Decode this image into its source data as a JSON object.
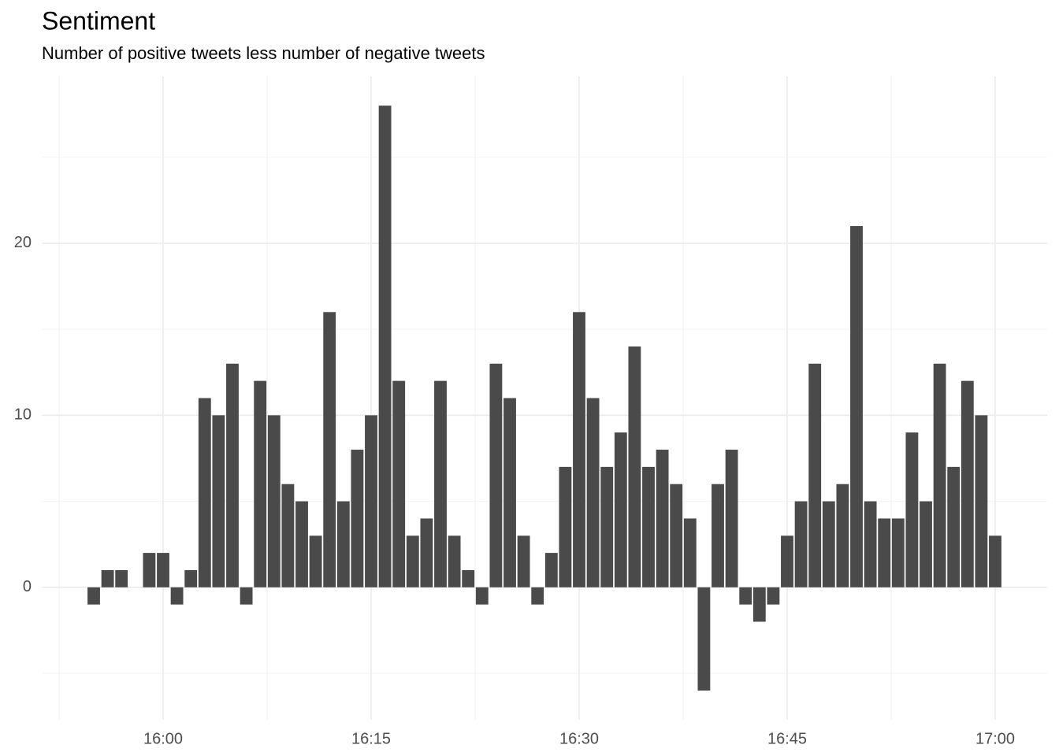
{
  "chart_data": {
    "type": "bar",
    "title": "Sentiment",
    "subtitle": "Number of positive tweets less number of negative tweets",
    "x": [
      "15:55",
      "15:56",
      "15:57",
      "15:58",
      "15:59",
      "16:00",
      "16:01",
      "16:02",
      "16:03",
      "16:04",
      "16:05",
      "16:06",
      "16:07",
      "16:08",
      "16:09",
      "16:10",
      "16:11",
      "16:12",
      "16:13",
      "16:14",
      "16:15",
      "16:16",
      "16:17",
      "16:18",
      "16:19",
      "16:20",
      "16:21",
      "16:22",
      "16:23",
      "16:24",
      "16:25",
      "16:26",
      "16:27",
      "16:28",
      "16:29",
      "16:30",
      "16:31",
      "16:32",
      "16:33",
      "16:34",
      "16:35",
      "16:36",
      "16:37",
      "16:38",
      "16:39",
      "16:40",
      "16:41",
      "16:42",
      "16:43",
      "16:44",
      "16:45",
      "16:46",
      "16:47",
      "16:48",
      "16:49",
      "16:50",
      "16:51",
      "16:52",
      "16:53",
      "16:54",
      "16:55",
      "16:56",
      "16:57",
      "16:58",
      "16:59",
      "17:00"
    ],
    "values": [
      -1,
      1,
      1,
      0,
      2,
      2,
      -1,
      1,
      11,
      10,
      13,
      -1,
      12,
      10,
      6,
      5,
      3,
      16,
      5,
      8,
      10,
      28,
      12,
      3,
      4,
      12,
      3,
      1,
      -1,
      13,
      11,
      3,
      -1,
      2,
      7,
      16,
      11,
      7,
      9,
      14,
      7,
      8,
      6,
      4,
      -6,
      6,
      8,
      -1,
      -2,
      -1,
      3,
      5,
      13,
      5,
      6,
      21,
      5,
      4,
      4,
      9,
      5,
      13,
      7,
      12,
      10,
      3
    ],
    "color": "#4a4a4a",
    "xlim": [
      "15:51:15",
      "17:03:45"
    ],
    "xticks": [
      "16:00",
      "16:15",
      "16:30",
      "16:45",
      "17:00"
    ],
    "ylim": [
      -7.7,
      29.7
    ],
    "yticks": [
      0,
      10,
      20
    ],
    "grid": true
  }
}
